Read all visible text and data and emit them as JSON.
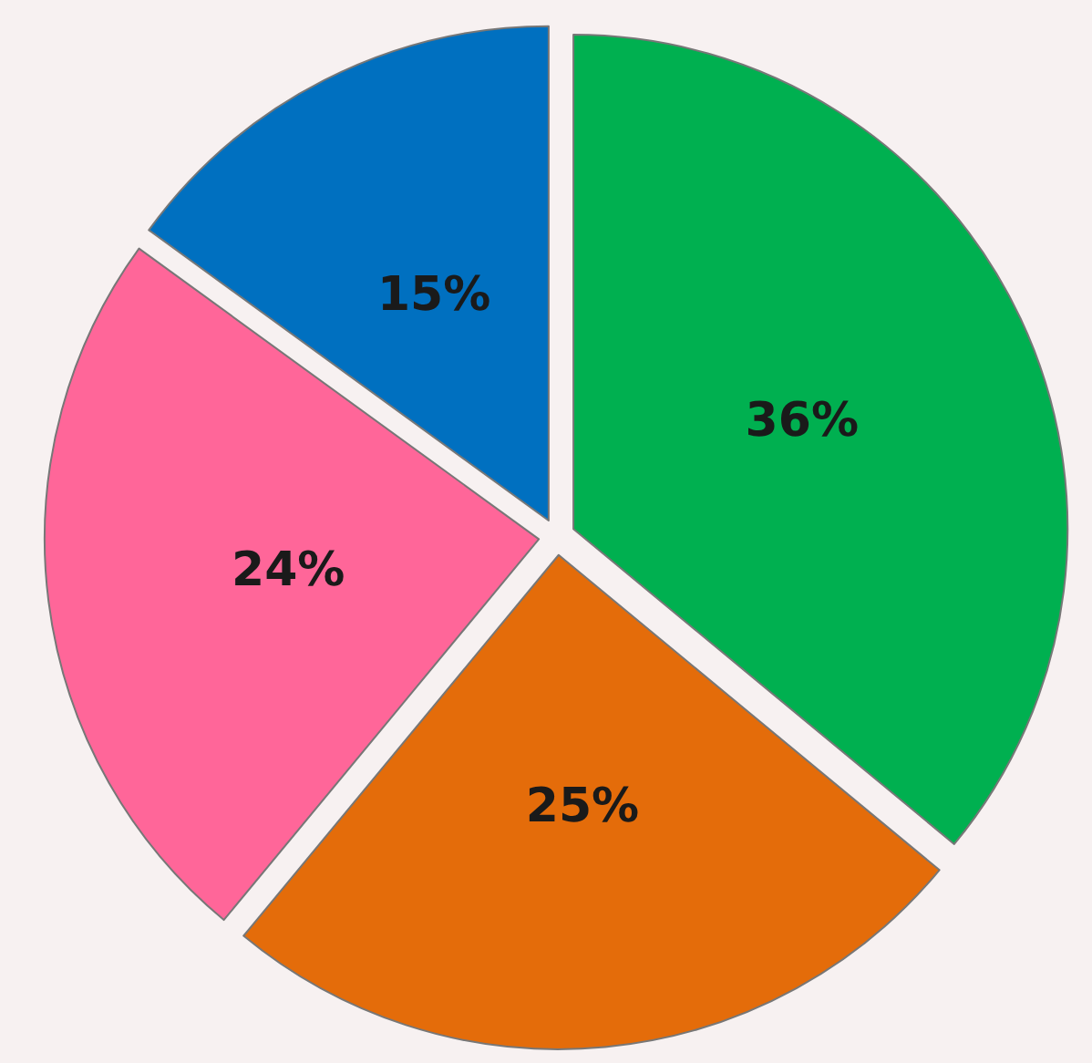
{
  "chart_data": {
    "type": "pie",
    "categories": [
      null,
      null,
      null,
      null
    ],
    "values": [
      36,
      25,
      24,
      15
    ],
    "colors": [
      "#00b050",
      "#e46c0a",
      "#ff6699",
      "#0070c0"
    ],
    "value_labels": [
      "36%",
      "25%",
      "24%",
      "15%"
    ]
  }
}
